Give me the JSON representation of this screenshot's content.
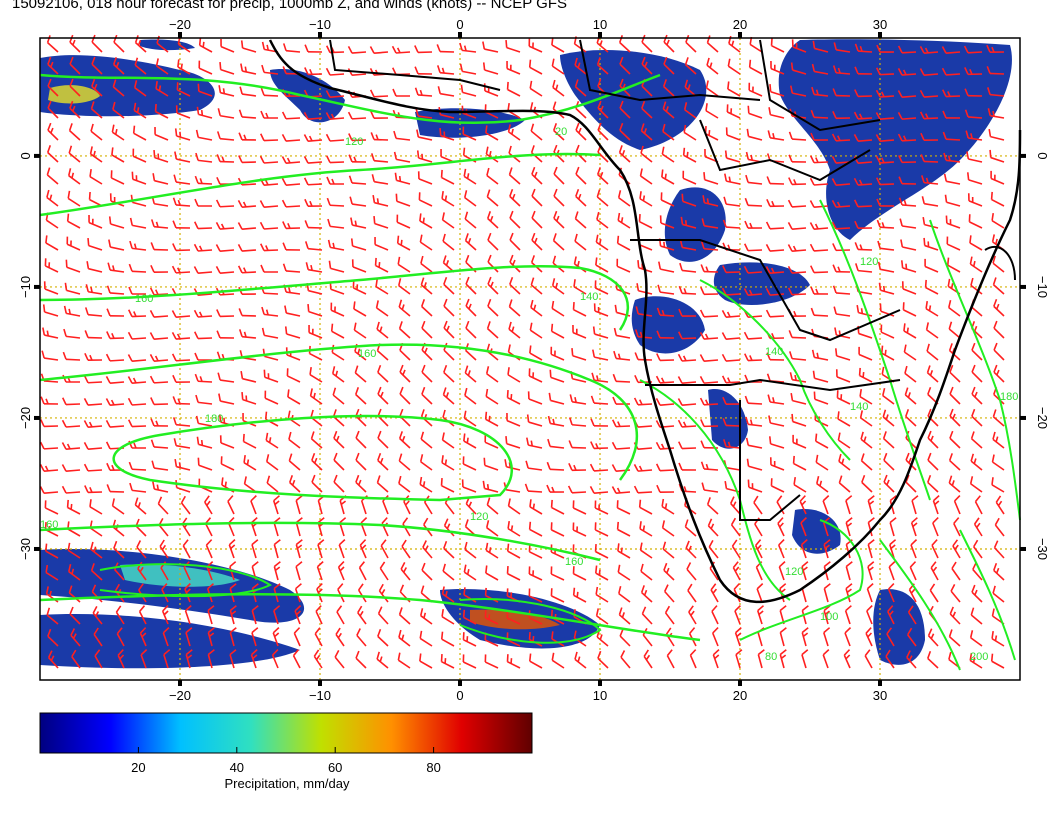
{
  "title": "15092106, 018 hour forecast for precip, 1000mb Z, and winds (knots) -- NCEP GFS",
  "map": {
    "lon_range": [
      -30,
      40
    ],
    "lat_range": [
      -40,
      9
    ],
    "lon_ticks": [
      "−20",
      "−10",
      "0",
      "10",
      "20",
      "30"
    ],
    "lat_ticks": [
      "0",
      "−10",
      "−20",
      "−30"
    ],
    "contour_labels": [
      "120",
      "160",
      "160",
      "180",
      "20",
      "140",
      "160",
      "160",
      "120",
      "140",
      "120",
      "100",
      "80",
      "200",
      "180",
      "140",
      "120"
    ],
    "colors": {
      "frame": "#000000",
      "graticule": "#d4b000",
      "wind_barbs": "#ff2020",
      "contours": "#22ee22",
      "coastlines": "#000000"
    }
  },
  "colorbar": {
    "ticks": [
      "20",
      "40",
      "60",
      "80"
    ],
    "label": "Precipitation, mm/day",
    "colors": [
      "#000080",
      "#0000ff",
      "#00c0ff",
      "#30e0c0",
      "#c0e000",
      "#ff9000",
      "#e00000",
      "#600000"
    ]
  }
}
